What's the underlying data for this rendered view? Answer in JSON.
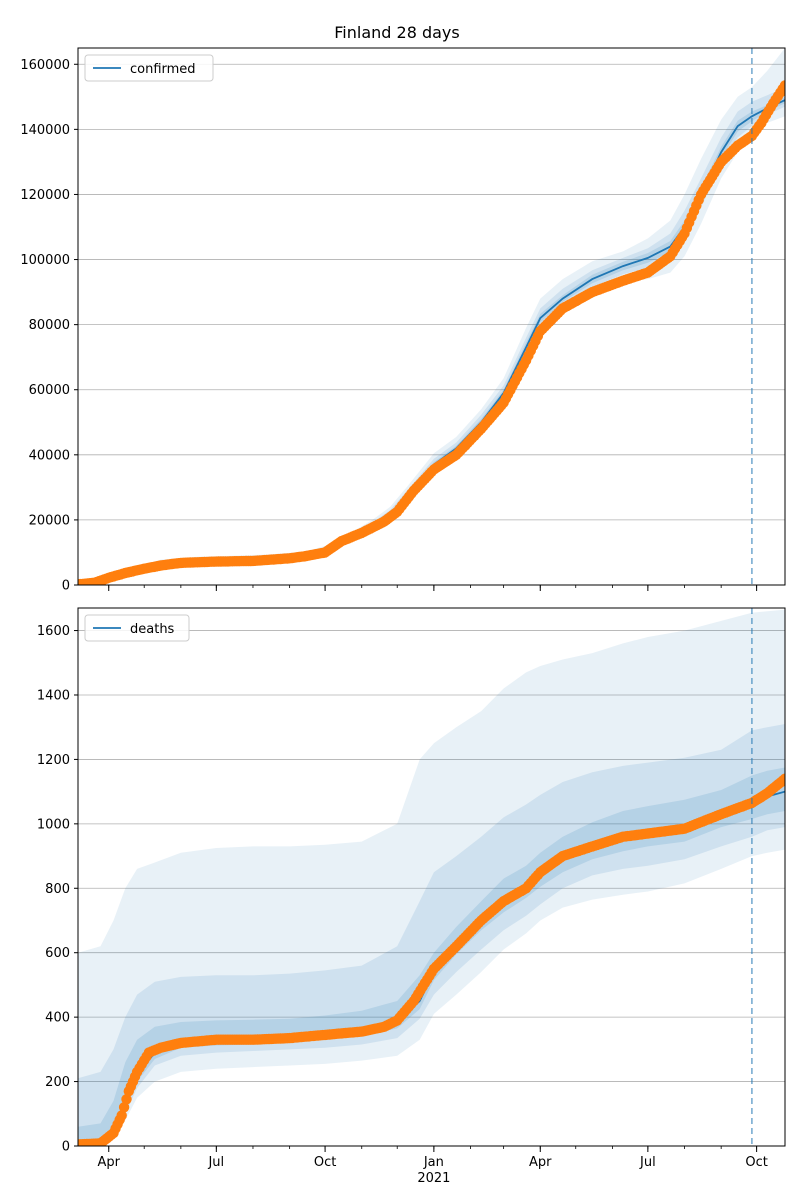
{
  "title": "Finland 28 days",
  "chart_data": [
    {
      "type": "line",
      "title": "Finland 28 days",
      "series_name": "confirmed",
      "legend_position": "upper-left",
      "grid": "horizontal",
      "x_range": [
        "2020-03-06",
        "2021-10-25"
      ],
      "ylim": [
        0,
        165000
      ],
      "yticks": [
        0,
        20000,
        40000,
        60000,
        80000,
        100000,
        120000,
        140000,
        160000
      ],
      "ytick_labels": [
        "0",
        "20000",
        "40000",
        "60000",
        "80000",
        "100000",
        "120000",
        "140000",
        "160000"
      ],
      "forecast_start": "2021-09-27",
      "colors": {
        "model": "#1f77b4",
        "observed": "#ff7f0e",
        "band": "#1f77b4"
      },
      "model_line": {
        "x": [
          "2020-03-06",
          "2020-04-01",
          "2020-04-20",
          "2020-05-15",
          "2020-06-15",
          "2020-07-15",
          "2020-08-15",
          "2020-09-15",
          "2020-10-01",
          "2020-10-20",
          "2020-11-10",
          "2020-11-25",
          "2020-12-10",
          "2021-01-01",
          "2021-01-20",
          "2021-02-10",
          "2021-03-01",
          "2021-03-20",
          "2021-04-01",
          "2021-04-20",
          "2021-05-15",
          "2021-06-10",
          "2021-07-01",
          "2021-07-20",
          "2021-08-01",
          "2021-08-15",
          "2021-09-01",
          "2021-09-15",
          "2021-09-27",
          "2021-10-10",
          "2021-10-25"
        ],
        "y": [
          300,
          2000,
          4000,
          6500,
          7500,
          7800,
          8200,
          9000,
          10500,
          14000,
          18000,
          21500,
          28000,
          37000,
          42000,
          50000,
          59000,
          73000,
          82000,
          88000,
          94000,
          98000,
          100500,
          104000,
          110000,
          120000,
          133000,
          141000,
          144000,
          146500,
          149000
        ]
      },
      "observed": {
        "x": [
          "2020-03-06",
          "2020-03-20",
          "2020-04-01",
          "2020-04-15",
          "2020-05-01",
          "2020-05-15",
          "2020-06-01",
          "2020-07-01",
          "2020-08-01",
          "2020-09-01",
          "2020-09-15",
          "2020-10-01",
          "2020-10-15",
          "2020-11-01",
          "2020-11-20",
          "2020-12-01",
          "2020-12-15",
          "2021-01-01",
          "2021-01-20",
          "2021-02-10",
          "2021-03-01",
          "2021-03-20",
          "2021-04-01",
          "2021-04-20",
          "2021-05-15",
          "2021-06-10",
          "2021-07-01",
          "2021-07-20",
          "2021-08-01",
          "2021-08-15",
          "2021-09-01",
          "2021-09-15",
          "2021-09-27",
          "2021-10-05",
          "2021-10-15",
          "2021-10-25"
        ],
        "y": [
          200,
          700,
          2200,
          3700,
          5000,
          6000,
          6800,
          7200,
          7400,
          8200,
          8900,
          10000,
          13500,
          16000,
          19500,
          22500,
          29000,
          35500,
          40000,
          48000,
          56000,
          69000,
          78000,
          85000,
          90000,
          93500,
          96000,
          101000,
          108000,
          120000,
          130000,
          135000,
          138000,
          142000,
          148000,
          153500
        ]
      },
      "bands": [
        {
          "level": "outer",
          "lower": [
            0,
            1500,
            3000,
            5500,
            6500,
            6700,
            7000,
            8000,
            9500,
            13000,
            16500,
            20000,
            26000,
            34000,
            39000,
            46000,
            55000,
            67000,
            77000,
            84000,
            89000,
            93000,
            94000,
            96000,
            101000,
            111000,
            125000,
            133000,
            137000,
            142000,
            144000
          ],
          "upper": [
            600,
            2600,
            5000,
            7800,
            8700,
            9000,
            9400,
            10300,
            12000,
            15500,
            20000,
            24000,
            30500,
            40500,
            45500,
            54000,
            63500,
            79000,
            88000,
            94000,
            99500,
            102500,
            106500,
            112000,
            120000,
            131000,
            143000,
            150000,
            153000,
            158000,
            165000
          ]
        },
        {
          "level": "middle",
          "lower": [
            100,
            1700,
            3400,
            6000,
            7000,
            7200,
            7600,
            8500,
            10000,
            13500,
            17200,
            20700,
            27000,
            35500,
            40500,
            48000,
            57000,
            70000,
            79500,
            86000,
            91500,
            95500,
            97500,
            100500,
            106000,
            116000,
            129500,
            137500,
            141000,
            144500,
            147000
          ],
          "upper": [
            450,
            2350,
            4600,
            7100,
            8100,
            8500,
            8900,
            9600,
            11200,
            14800,
            19200,
            23000,
            29300,
            38800,
            43800,
            52300,
            61300,
            76000,
            85000,
            91000,
            96700,
            100500,
            103500,
            108000,
            115000,
            125000,
            137500,
            145500,
            148500,
            150500,
            153000
          ]
        },
        {
          "level": "inner",
          "lower": [
            200,
            1850,
            3700,
            6250,
            7250,
            7500,
            7900,
            8750,
            10250,
            13750,
            17600,
            21100,
            27500,
            36200,
            41200,
            49000,
            58000,
            71500,
            80700,
            87000,
            92700,
            96700,
            99000,
            102300,
            108000,
            118000,
            131300,
            139300,
            142500,
            145500,
            148000
          ],
          "upper": [
            380,
            2150,
            4300,
            6750,
            7750,
            8100,
            8500,
            9250,
            10750,
            14250,
            18400,
            21900,
            28500,
            37800,
            42800,
            51000,
            60000,
            74500,
            83300,
            89000,
            95300,
            99300,
            102000,
            105700,
            112000,
            122000,
            134700,
            142700,
            145500,
            147500,
            150000
          ]
        }
      ]
    },
    {
      "type": "line",
      "series_name": "deaths",
      "legend_position": "upper-left",
      "grid": "horizontal",
      "x_range": [
        "2020-03-06",
        "2021-10-25"
      ],
      "ylim": [
        0,
        1670
      ],
      "yticks": [
        0,
        200,
        400,
        600,
        800,
        1000,
        1200,
        1400,
        1600
      ],
      "ytick_labels": [
        "0",
        "200",
        "400",
        "600",
        "800",
        "1000",
        "1200",
        "1400",
        "1600"
      ],
      "xticks": [
        "2020-04-01",
        "2020-07-01",
        "2020-10-01",
        "2021-01-01",
        "2021-04-01",
        "2021-07-01",
        "2021-10-01"
      ],
      "xtick_labels": [
        "Apr",
        "Jul",
        "Oct",
        "Jan\n2021",
        "Apr",
        "Jul",
        "Oct"
      ],
      "forecast_start": "2021-09-27",
      "colors": {
        "model": "#1f77b4",
        "observed": "#ff7f0e",
        "band": "#1f77b4"
      },
      "model_line": {
        "x": [
          "2020-03-06",
          "2020-03-25",
          "2020-04-05",
          "2020-04-15",
          "2020-04-25",
          "2020-05-10",
          "2020-06-01",
          "2020-07-01",
          "2020-08-01",
          "2020-09-01",
          "2020-10-01",
          "2020-11-01",
          "2020-12-01",
          "2020-12-20",
          "2021-01-01",
          "2021-01-20",
          "2021-02-10",
          "2021-03-01",
          "2021-03-20",
          "2021-04-01",
          "2021-04-20",
          "2021-05-15",
          "2021-06-10",
          "2021-07-01",
          "2021-08-01",
          "2021-09-01",
          "2021-09-27",
          "2021-10-10",
          "2021-10-25"
        ],
        "y": [
          10,
          15,
          40,
          120,
          220,
          290,
          320,
          328,
          330,
          335,
          345,
          355,
          385,
          450,
          540,
          620,
          700,
          760,
          800,
          840,
          890,
          930,
          960,
          975,
          990,
          1040,
          1070,
          1085,
          1100
        ]
      },
      "observed": {
        "x": [
          "2020-03-06",
          "2020-03-25",
          "2020-04-05",
          "2020-04-12",
          "2020-04-18",
          "2020-04-25",
          "2020-05-05",
          "2020-05-15",
          "2020-06-01",
          "2020-07-01",
          "2020-08-01",
          "2020-09-01",
          "2020-10-01",
          "2020-11-01",
          "2020-11-20",
          "2020-12-01",
          "2020-12-15",
          "2021-01-01",
          "2021-01-20",
          "2021-02-10",
          "2021-03-01",
          "2021-03-20",
          "2021-04-01",
          "2021-04-20",
          "2021-05-15",
          "2021-06-10",
          "2021-07-01",
          "2021-08-01",
          "2021-09-01",
          "2021-09-27",
          "2021-10-10",
          "2021-10-25"
        ],
        "y": [
          5,
          8,
          40,
          95,
          170,
          230,
          290,
          305,
          320,
          330,
          330,
          335,
          345,
          355,
          370,
          390,
          450,
          550,
          620,
          700,
          760,
          800,
          850,
          900,
          930,
          960,
          970,
          985,
          1030,
          1065,
          1095,
          1140
        ]
      },
      "bands": [
        {
          "level": "outer",
          "lower": [
            0,
            5,
            25,
            80,
            150,
            200,
            230,
            240,
            245,
            250,
            255,
            265,
            280,
            330,
            410,
            470,
            540,
            610,
            660,
            700,
            740,
            765,
            780,
            790,
            815,
            860,
            900,
            910,
            920
          ],
          "upper": [
            600,
            620,
            700,
            800,
            860,
            880,
            910,
            925,
            930,
            930,
            935,
            945,
            1000,
            1200,
            1250,
            1300,
            1350,
            1420,
            1470,
            1490,
            1510,
            1530,
            1560,
            1580,
            1600,
            1630,
            1655,
            1660,
            1665
          ]
        },
        {
          "level": "middle",
          "lower": [
            0,
            8,
            32,
            100,
            180,
            250,
            280,
            290,
            295,
            300,
            305,
            315,
            335,
            395,
            470,
            540,
            610,
            670,
            715,
            750,
            800,
            840,
            860,
            870,
            890,
            930,
            960,
            980,
            990
          ],
          "upper": [
            210,
            230,
            300,
            400,
            470,
            510,
            525,
            530,
            530,
            535,
            545,
            560,
            620,
            760,
            850,
            900,
            960,
            1020,
            1060,
            1090,
            1130,
            1160,
            1180,
            1190,
            1205,
            1230,
            1290,
            1300,
            1310
          ]
        },
        {
          "level": "inner",
          "lower": [
            5,
            12,
            36,
            110,
            200,
            270,
            305,
            312,
            315,
            320,
            330,
            340,
            365,
            425,
            515,
            595,
            670,
            725,
            770,
            805,
            850,
            890,
            915,
            930,
            945,
            990,
            1015,
            1030,
            1040
          ],
          "upper": [
            60,
            70,
            140,
            260,
            330,
            370,
            385,
            390,
            392,
            395,
            405,
            420,
            450,
            530,
            600,
            680,
            760,
            830,
            870,
            910,
            960,
            1005,
            1040,
            1055,
            1075,
            1105,
            1150,
            1165,
            1175
          ]
        }
      ]
    }
  ]
}
